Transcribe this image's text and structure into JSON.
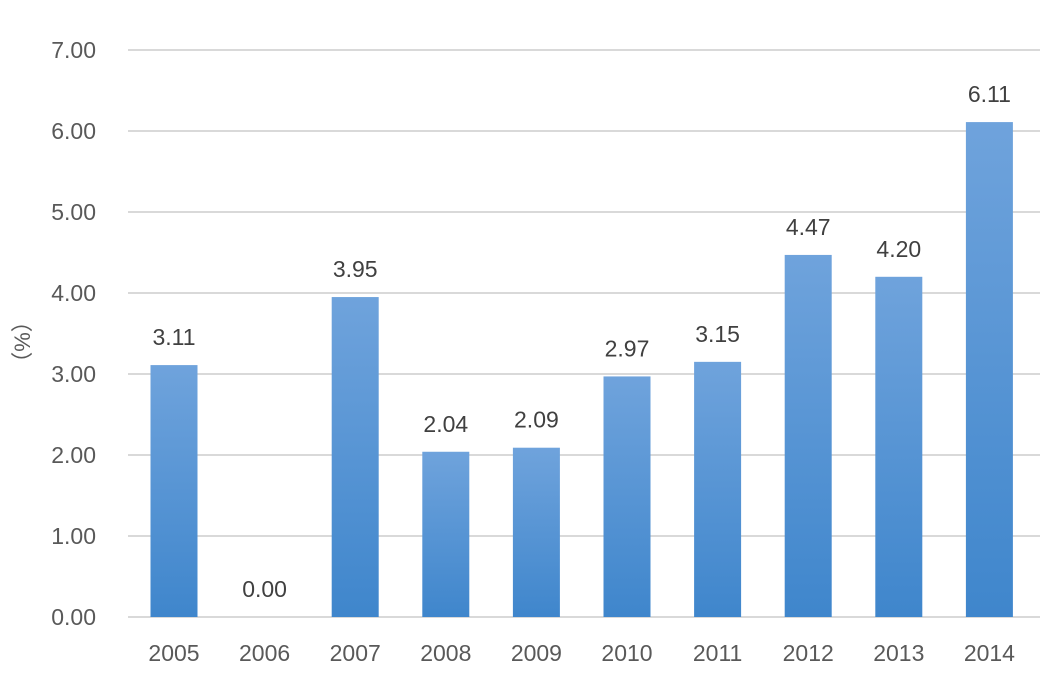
{
  "chart_data": {
    "type": "bar",
    "title": "",
    "xlabel": "",
    "ylabel": "（%）",
    "categories": [
      "2005",
      "2006",
      "2007",
      "2008",
      "2009",
      "2010",
      "2011",
      "2012",
      "2013",
      "2014"
    ],
    "values": [
      3.11,
      0.0,
      3.95,
      2.04,
      2.09,
      2.97,
      3.15,
      4.47,
      4.2,
      6.11
    ],
    "value_labels": [
      "3.11",
      "0.00",
      "3.95",
      "2.04",
      "2.09",
      "2.97",
      "3.15",
      "4.47",
      "4.20",
      "6.11"
    ],
    "ylim": [
      0,
      7
    ],
    "yticks": [
      "0.00",
      "1.00",
      "2.00",
      "3.00",
      "4.00",
      "5.00",
      "6.00",
      "7.00"
    ],
    "grid": true,
    "legend": "none",
    "colors": {
      "bar_top": "#6fa3dc",
      "bar_bottom": "#3f86cc",
      "gridline": "#d9d9d9",
      "tick_text": "#595959",
      "label_text": "#404040"
    }
  }
}
